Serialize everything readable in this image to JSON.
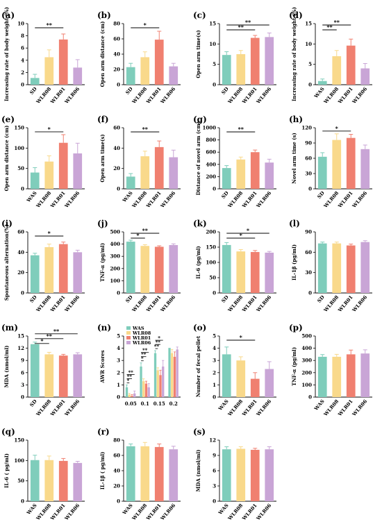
{
  "colors": {
    "A": "#7fcdbb",
    "B": "#f9d98b",
    "C": "#f08070",
    "D": "#c9a5d6",
    "axis": "#000000",
    "sig": "#000000"
  },
  "legend_n": [
    "WAS",
    "WLR08",
    "WLR01",
    "WLR06"
  ],
  "panels": [
    {
      "label": "(a)",
      "ylabel": "Increasing rate of body weight (%)",
      "categories": [
        "SD",
        "WLR08",
        "WLR01",
        "WLR06"
      ],
      "values": [
        1.1,
        4.5,
        7.4,
        2.8
      ],
      "errors": [
        0.6,
        1.2,
        0.9,
        1.3
      ],
      "ylim": [
        0,
        10
      ],
      "yticks": [
        "0",
        "2",
        "4",
        "6",
        "8",
        "10"
      ],
      "sig": [
        {
          "from": 0,
          "to": 2,
          "text": "**"
        }
      ]
    },
    {
      "label": "(b)",
      "ylabel": "Open arm distance (cm)",
      "categories": [
        "SD",
        "WLR08",
        "WLR01",
        "WLR06"
      ],
      "values": [
        23,
        36,
        59,
        24
      ],
      "errors": [
        5,
        7,
        11,
        4
      ],
      "ylim": [
        0,
        80
      ],
      "yticks": [
        "0",
        "20",
        "40",
        "60",
        "80"
      ],
      "sig": [
        {
          "from": 0,
          "to": 2,
          "text": "*"
        }
      ]
    },
    {
      "label": "(c)",
      "ylabel": "Open arm time(s)",
      "categories": [
        "SD",
        "WLR08",
        "WLR01",
        "WLR06"
      ],
      "values": [
        7.3,
        7.5,
        11.5,
        11.7
      ],
      "errors": [
        0.8,
        0.9,
        0.6,
        1.0
      ],
      "ylim": [
        0,
        15
      ],
      "yticks": [
        "0",
        "5",
        "10",
        "15"
      ],
      "sig": [
        {
          "from": 0,
          "to": 2,
          "text": "**"
        },
        {
          "from": 0,
          "to": 3,
          "text": "**"
        }
      ]
    },
    {
      "label": "(d)",
      "ylabel": "Increasing rate of body weight (%)",
      "categories": [
        "WAS",
        "WLR08",
        "WLR01",
        "WLR06"
      ],
      "values": [
        0.9,
        7.0,
        9.6,
        4.0
      ],
      "errors": [
        0.5,
        1.4,
        1.6,
        1.2
      ],
      "ylim": [
        0,
        15
      ],
      "yticks": [
        "0",
        "5",
        "10",
        "15"
      ],
      "sig": [
        {
          "from": 0,
          "to": 1,
          "text": "**"
        },
        {
          "from": 0,
          "to": 2,
          "text": "**"
        }
      ]
    },
    {
      "label": "(e)",
      "ylabel": "Open arm distance (cm)",
      "categories": [
        "WAS",
        "WLR08",
        "WLR01",
        "WLR06"
      ],
      "values": [
        40,
        67,
        113,
        87
      ],
      "errors": [
        12,
        14,
        20,
        25
      ],
      "ylim": [
        0,
        150
      ],
      "yticks": [
        "0",
        "50",
        "100",
        "150"
      ],
      "sig": [
        {
          "from": 0,
          "to": 2,
          "text": "*"
        }
      ]
    },
    {
      "label": "(f)",
      "ylabel": "Open arm time(s)",
      "categories": [
        "WAS",
        "WLR08",
        "WLR01",
        "WLR06"
      ],
      "values": [
        12,
        32,
        41,
        31
      ],
      "errors": [
        3,
        5,
        6,
        7
      ],
      "ylim": [
        0,
        60
      ],
      "yticks": [
        "0",
        "20",
        "40",
        "60"
      ],
      "sig": [
        {
          "from": 0,
          "to": 2,
          "text": "**"
        }
      ]
    },
    {
      "label": "(g)",
      "ylabel": "Distance of novel arm (cm)",
      "categories": [
        "SD",
        "WLR08",
        "WLR01",
        "WLR06"
      ],
      "values": [
        340,
        480,
        600,
        430
      ],
      "errors": [
        40,
        40,
        35,
        55
      ],
      "ylim": [
        0,
        1000
      ],
      "yticks": [
        "0",
        "200",
        "400",
        "600",
        "800",
        "1000"
      ],
      "sig": [
        {
          "from": 0,
          "to": 2,
          "text": "**"
        }
      ]
    },
    {
      "label": "(h)",
      "ylabel": "Novel arm time (s)",
      "categories": [
        "SD",
        "WLR08",
        "WLR01",
        "WLR06"
      ],
      "values": [
        63,
        96,
        100,
        78
      ],
      "errors": [
        8,
        12,
        7,
        8
      ],
      "ylim": [
        0,
        120
      ],
      "yticks": [
        "0",
        "30",
        "60",
        "90",
        "120"
      ],
      "sig": [
        {
          "from": 0,
          "to": 2,
          "text": "*"
        }
      ]
    },
    {
      "label": "(i)",
      "ylabel": "Spontaneous alternation(%)",
      "categories": [
        "SD",
        "WLR08",
        "WLR01",
        "WLR06"
      ],
      "values": [
        37,
        45,
        48,
        40
      ],
      "errors": [
        2,
        3,
        2,
        2
      ],
      "ylim": [
        0,
        60
      ],
      "yticks": [
        "0",
        "20",
        "40",
        "60"
      ],
      "sig": [
        {
          "from": 0,
          "to": 2,
          "text": "*"
        }
      ]
    },
    {
      "label": "(j)",
      "ylabel": "TNF-α (pg/ml)",
      "categories": [
        "SD",
        "WLR08",
        "WLR01",
        "WLR06"
      ],
      "values": [
        420,
        385,
        378,
        392
      ],
      "errors": [
        12,
        10,
        8,
        10
      ],
      "ylim": [
        0,
        500
      ],
      "yticks": [
        "0",
        "100",
        "200",
        "300",
        "400",
        "500"
      ],
      "sig": [
        {
          "from": 0,
          "to": 1,
          "text": "*"
        },
        {
          "from": 0,
          "to": 2,
          "text": "**"
        }
      ]
    },
    {
      "label": "(k)",
      "ylabel": "IL-6 (pg/ml)",
      "categories": [
        "SD",
        "WLR08",
        "WLR01",
        "WLR06"
      ],
      "values": [
        157,
        136,
        134,
        132
      ],
      "errors": [
        8,
        6,
        5,
        4
      ],
      "ylim": [
        0,
        200
      ],
      "yticks": [
        "0",
        "50",
        "100",
        "150",
        "200"
      ],
      "sig": [
        {
          "from": 0,
          "to": 2,
          "text": "*"
        },
        {
          "from": 0,
          "to": 3,
          "text": "*"
        }
      ]
    },
    {
      "label": "(l)",
      "ylabel": "IL-1β (pg/ml)",
      "categories": [
        "SD",
        "WLR08",
        "WLR01",
        "WLR06"
      ],
      "values": [
        73,
        73,
        70,
        75
      ],
      "errors": [
        2,
        2,
        2,
        2
      ],
      "ylim": [
        0,
        90
      ],
      "yticks": [
        "0",
        "30",
        "60",
        "90"
      ],
      "sig": []
    },
    {
      "label": "(m)",
      "ylabel": "MDA (nmol/ml)",
      "categories": [
        "SD",
        "WLR08",
        "WLR01",
        "WLR06"
      ],
      "values": [
        13.0,
        10.5,
        10.2,
        10.5
      ],
      "errors": [
        0.5,
        0.5,
        0.3,
        0.4
      ],
      "ylim": [
        0,
        15
      ],
      "yticks": [
        "0",
        "3",
        "6",
        "9",
        "12",
        "15"
      ],
      "sig": [
        {
          "from": 0,
          "to": 1,
          "text": "*"
        },
        {
          "from": 0,
          "to": 2,
          "text": "**"
        },
        {
          "from": 0,
          "to": 3,
          "text": "**"
        }
      ]
    },
    {
      "label": "(n)",
      "type": "grouped",
      "ylabel": "AWR Scores",
      "categories": [
        "0.05",
        "0.1",
        "0.15",
        "0.2"
      ],
      "ylim": [
        0,
        5
      ],
      "yticks": [
        "0",
        "1",
        "2",
        "3",
        "4",
        "5"
      ],
      "series": [
        {
          "name": "WAS",
          "values": [
            0.8,
            2.5,
            3.6,
            4.0
          ],
          "errors": [
            0.2,
            0.3,
            0.2,
            0.0
          ]
        },
        {
          "name": "WLR08",
          "values": [
            0.2,
            1.3,
            2.2,
            3.6
          ],
          "errors": [
            0.1,
            0.2,
            0.2,
            0.3
          ]
        },
        {
          "name": "WLR01",
          "values": [
            0.1,
            1.1,
            1.8,
            3.3
          ],
          "errors": [
            0.1,
            0.2,
            0.4,
            0.4
          ]
        },
        {
          "name": "WLR06",
          "values": [
            0.3,
            0.8,
            2.5,
            3.9
          ],
          "errors": [
            0.2,
            0.3,
            0.5,
            0.2
          ]
        }
      ],
      "sig": [
        {
          "group": 0,
          "from": 0,
          "to": 1,
          "text": "*"
        },
        {
          "group": 0,
          "from": 0,
          "to": 2,
          "text": "**"
        },
        {
          "group": 0,
          "from": 0,
          "to": 3,
          "text": "**"
        },
        {
          "group": 1,
          "from": 0,
          "to": 1,
          "text": "*"
        },
        {
          "group": 1,
          "from": 0,
          "to": 2,
          "text": "**"
        },
        {
          "group": 1,
          "from": 0,
          "to": 3,
          "text": "**"
        },
        {
          "group": 2,
          "from": 0,
          "to": 1,
          "text": "**"
        },
        {
          "group": 2,
          "from": 0,
          "to": 2,
          "text": "**"
        },
        {
          "group": 2,
          "from": 0,
          "to": 3,
          "text": "*"
        }
      ]
    },
    {
      "label": "(o)",
      "ylabel": "Number of fecal pellet",
      "categories": [
        "WAS",
        "WLR08",
        "WLR01",
        "WLR06"
      ],
      "values": [
        3.5,
        3.0,
        1.5,
        2.3
      ],
      "errors": [
        0.6,
        0.3,
        0.5,
        0.6
      ],
      "ylim": [
        0,
        5
      ],
      "yticks": [
        "0",
        "1",
        "2",
        "3",
        "4",
        "5"
      ],
      "sig": [
        {
          "from": 0,
          "to": 2,
          "text": "*"
        }
      ]
    },
    {
      "label": "(p)",
      "ylabel": "TNF-α (pg/ml)",
      "categories": [
        "WAS",
        "WLR08",
        "WLR01",
        "WLR06"
      ],
      "values": [
        330,
        330,
        350,
        357
      ],
      "errors": [
        18,
        20,
        35,
        30
      ],
      "ylim": [
        0,
        500
      ],
      "yticks": [
        "0",
        "100",
        "200",
        "300",
        "400",
        "500"
      ],
      "sig": []
    },
    {
      "label": "(q)",
      "ylabel": "IL-6 ( pg/ml)",
      "categories": [
        "WAS",
        "WLR08",
        "WLR01",
        "WLR06"
      ],
      "values": [
        101,
        101,
        99,
        94
      ],
      "errors": [
        12,
        10,
        6,
        4
      ],
      "ylim": [
        0,
        150
      ],
      "yticks": [
        "0",
        "50",
        "100",
        "150"
      ],
      "sig": []
    },
    {
      "label": "(r)",
      "ylabel": "IL-1β ( pg/ml)",
      "categories": [
        "WAS",
        "WLR08",
        "WLR01",
        "WLR06"
      ],
      "values": [
        72,
        72,
        71,
        68
      ],
      "errors": [
        3,
        5,
        4,
        4
      ],
      "ylim": [
        0,
        80
      ],
      "yticks": [
        "0",
        "20",
        "40",
        "60",
        "80"
      ],
      "sig": []
    },
    {
      "label": "(s)",
      "ylabel": "MDA (nmol/ml)",
      "categories": [
        "WAS",
        "WLR08",
        "WLR01",
        "WLR06"
      ],
      "values": [
        10.2,
        10.3,
        10.1,
        10.2
      ],
      "errors": [
        0.5,
        0.4,
        0.3,
        0.5
      ],
      "ylim": [
        0,
        12
      ],
      "yticks": [
        "0",
        "3",
        "6",
        "9",
        "12"
      ],
      "sig": []
    }
  ],
  "chart_data": [
    {
      "type": "bar",
      "label": "(a)",
      "ylabel": "Increasing rate of body weight (%)",
      "categories": [
        "SD",
        "WLR08",
        "WLR01",
        "WLR06"
      ],
      "values": [
        1.1,
        4.5,
        7.4,
        2.8
      ],
      "ylim": [
        0,
        10
      ]
    },
    {
      "type": "bar",
      "label": "(b)",
      "ylabel": "Open arm distance (cm)",
      "categories": [
        "SD",
        "WLR08",
        "WLR01",
        "WLR06"
      ],
      "values": [
        23,
        36,
        59,
        24
      ],
      "ylim": [
        0,
        80
      ]
    },
    {
      "type": "bar",
      "label": "(c)",
      "ylabel": "Open arm time(s)",
      "categories": [
        "SD",
        "WLR08",
        "WLR01",
        "WLR06"
      ],
      "values": [
        7.3,
        7.5,
        11.5,
        11.7
      ],
      "ylim": [
        0,
        15
      ]
    },
    {
      "type": "bar",
      "label": "(d)",
      "ylabel": "Increasing rate of body weight (%)",
      "categories": [
        "WAS",
        "WLR08",
        "WLR01",
        "WLR06"
      ],
      "values": [
        0.9,
        7.0,
        9.6,
        4.0
      ],
      "ylim": [
        0,
        15
      ]
    },
    {
      "type": "bar",
      "label": "(e)",
      "ylabel": "Open arm distance (cm)",
      "categories": [
        "WAS",
        "WLR08",
        "WLR01",
        "WLR06"
      ],
      "values": [
        40,
        67,
        113,
        87
      ],
      "ylim": [
        0,
        150
      ]
    },
    {
      "type": "bar",
      "label": "(f)",
      "ylabel": "Open arm time(s)",
      "categories": [
        "WAS",
        "WLR08",
        "WLR01",
        "WLR06"
      ],
      "values": [
        12,
        32,
        41,
        31
      ],
      "ylim": [
        0,
        60
      ]
    },
    {
      "type": "bar",
      "label": "(g)",
      "ylabel": "Distance of novel arm (cm)",
      "categories": [
        "SD",
        "WLR08",
        "WLR01",
        "WLR06"
      ],
      "values": [
        340,
        480,
        600,
        430
      ],
      "ylim": [
        0,
        1000
      ]
    },
    {
      "type": "bar",
      "label": "(h)",
      "ylabel": "Novel arm time (s)",
      "categories": [
        "SD",
        "WLR08",
        "WLR01",
        "WLR06"
      ],
      "values": [
        63,
        96,
        100,
        78
      ],
      "ylim": [
        0,
        120
      ]
    },
    {
      "type": "bar",
      "label": "(i)",
      "ylabel": "Spontaneous alternation(%)",
      "categories": [
        "SD",
        "WLR08",
        "WLR01",
        "WLR06"
      ],
      "values": [
        37,
        45,
        48,
        40
      ],
      "ylim": [
        0,
        60
      ]
    },
    {
      "type": "bar",
      "label": "(j)",
      "ylabel": "TNF-α (pg/ml)",
      "categories": [
        "SD",
        "WLR08",
        "WLR01",
        "WLR06"
      ],
      "values": [
        420,
        385,
        378,
        392
      ],
      "ylim": [
        0,
        500
      ]
    },
    {
      "type": "bar",
      "label": "(k)",
      "ylabel": "IL-6 (pg/ml)",
      "categories": [
        "SD",
        "WLR08",
        "WLR01",
        "WLR06"
      ],
      "values": [
        157,
        136,
        134,
        132
      ],
      "ylim": [
        0,
        200
      ]
    },
    {
      "type": "bar",
      "label": "(l)",
      "ylabel": "IL-1β (pg/ml)",
      "categories": [
        "SD",
        "WLR08",
        "WLR01",
        "WLR06"
      ],
      "values": [
        73,
        73,
        70,
        75
      ],
      "ylim": [
        0,
        90
      ]
    },
    {
      "type": "bar",
      "label": "(m)",
      "ylabel": "MDA (nmol/ml)",
      "categories": [
        "SD",
        "WLR08",
        "WLR01",
        "WLR06"
      ],
      "values": [
        13.0,
        10.5,
        10.2,
        10.5
      ],
      "ylim": [
        0,
        15
      ]
    },
    {
      "type": "bar",
      "label": "(n)",
      "ylabel": "AWR Scores",
      "categories": [
        "0.05",
        "0.1",
        "0.15",
        "0.2"
      ],
      "ylim": [
        0,
        5
      ],
      "legend": "top-left",
      "series": [
        {
          "name": "WAS",
          "values": [
            0.8,
            2.5,
            3.6,
            4.0
          ]
        },
        {
          "name": "WLR08",
          "values": [
            0.2,
            1.3,
            2.2,
            3.6
          ]
        },
        {
          "name": "WLR01",
          "values": [
            0.1,
            1.1,
            1.8,
            3.3
          ]
        },
        {
          "name": "WLR06",
          "values": [
            0.3,
            0.8,
            2.5,
            3.9
          ]
        }
      ]
    },
    {
      "type": "bar",
      "label": "(o)",
      "ylabel": "Number of fecal pellet",
      "categories": [
        "WAS",
        "WLR08",
        "WLR01",
        "WLR06"
      ],
      "values": [
        3.5,
        3.0,
        1.5,
        2.3
      ],
      "ylim": [
        0,
        5
      ]
    },
    {
      "type": "bar",
      "label": "(p)",
      "ylabel": "TNF-α (pg/ml)",
      "categories": [
        "WAS",
        "WLR08",
        "WLR01",
        "WLR06"
      ],
      "values": [
        330,
        330,
        350,
        357
      ],
      "ylim": [
        0,
        500
      ]
    },
    {
      "type": "bar",
      "label": "(q)",
      "ylabel": "IL-6 ( pg/ml)",
      "categories": [
        "WAS",
        "WLR08",
        "WLR01",
        "WLR06"
      ],
      "values": [
        101,
        101,
        99,
        94
      ],
      "ylim": [
        0,
        150
      ]
    },
    {
      "type": "bar",
      "label": "(r)",
      "ylabel": "IL-1β ( pg/ml)",
      "categories": [
        "WAS",
        "WLR08",
        "WLR01",
        "WLR06"
      ],
      "values": [
        72,
        72,
        71,
        68
      ],
      "ylim": [
        0,
        80
      ]
    },
    {
      "type": "bar",
      "label": "(s)",
      "ylabel": "MDA (nmol/ml)",
      "categories": [
        "WAS",
        "WLR08",
        "WLR01",
        "WLR06"
      ],
      "values": [
        10.2,
        10.3,
        10.1,
        10.2
      ],
      "ylim": [
        0,
        12
      ]
    }
  ]
}
